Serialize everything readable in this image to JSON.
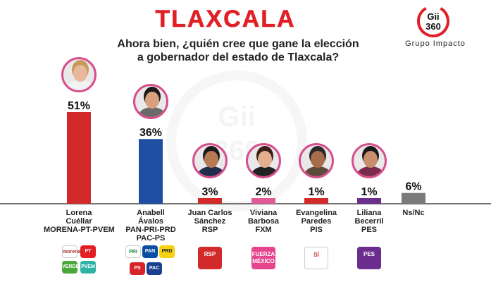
{
  "title": "TLAXCALA",
  "subtitle_line1": "Ahora bien, ¿quién cree que gane la elección",
  "subtitle_line2": "a gobernador del estado de Tlaxcala?",
  "brand": {
    "logo_line1": "Gii",
    "logo_line2": "360",
    "name": "Grupo Impacto"
  },
  "watermark": {
    "line1": "Gii",
    "line2": "360"
  },
  "colors": {
    "title": "#e01f26",
    "red": "#d22a2a",
    "blue": "#1f4fa3",
    "pink": "#e05a98",
    "purple": "#6b2d8e",
    "gray": "#7a7a7a"
  },
  "candidates": [
    {
      "name_lines": [
        "Lorena",
        "Cuéllar",
        "MORENA-PT-PVEM"
      ],
      "value": 51,
      "label": "51%",
      "color": "#d22a2a",
      "parties": [
        {
          "text": "morena",
          "color": "#ffffff",
          "fg": "#a52a2a"
        },
        {
          "text": "PT",
          "color": "#e31e24",
          "fg": "#ffffff"
        },
        {
          "text": "VERDE",
          "color": "#4aa83a",
          "fg": "#ffffff"
        },
        {
          "text": "PVEM",
          "color": "#2eb3a6",
          "fg": "#ffffff"
        }
      ]
    },
    {
      "name_lines": [
        "Anabell",
        "Ávalos",
        "PAN-PRI-PRD",
        "PAC-PS"
      ],
      "value": 36,
      "label": "36%",
      "color": "#1f4fa3",
      "parties": [
        {
          "text": "PRI",
          "color": "#ffffff",
          "fg": "#0f8a3e"
        },
        {
          "text": "PAN",
          "color": "#0a4fa3",
          "fg": "#ffffff"
        },
        {
          "text": "PRD",
          "color": "#f7d20f",
          "fg": "#222222"
        },
        {
          "text": "PS",
          "color": "#d8232a",
          "fg": "#ffffff"
        },
        {
          "text": "PAC",
          "color": "#1d3f8f",
          "fg": "#ffffff"
        }
      ]
    },
    {
      "name_lines": [
        "Juan Carlos",
        "Sánchez",
        "RSP"
      ],
      "value": 3,
      "label": "3%",
      "color": "#d22a2a",
      "parties": [
        {
          "text": "RSP",
          "color": "#d22a2a",
          "fg": "#ffffff"
        }
      ]
    },
    {
      "name_lines": [
        "Viviana",
        "Barbosa",
        "FXM"
      ],
      "value": 2,
      "label": "2%",
      "color": "#e05a98",
      "parties": [
        {
          "text": "FUERZA MÉXICO",
          "color": "#e5458d",
          "fg": "#ffffff"
        }
      ]
    },
    {
      "name_lines": [
        "Evangelina",
        "Paredes",
        "PIS"
      ],
      "value": 1,
      "label": "1%",
      "color": "#d22a2a",
      "parties": [
        {
          "text": "SÍ",
          "color": "#ffffff",
          "fg": "#d22a2a"
        }
      ]
    },
    {
      "name_lines": [
        "Liliana",
        "Becerril",
        "PES"
      ],
      "value": 1,
      "label": "1%",
      "color": "#6b2d8e",
      "parties": [
        {
          "text": "PES",
          "color": "#6b2d8e",
          "fg": "#ffffff"
        }
      ]
    },
    {
      "name_lines": [
        "Ns/Nc"
      ],
      "value": 6,
      "label": "6%",
      "color": "#7a7a7a",
      "parties": []
    }
  ],
  "chart_data": {
    "type": "bar",
    "title": "TLAXCALA",
    "subtitle": "Ahora bien, ¿quién cree que gane la elección a gobernador del estado de Tlaxcala?",
    "categories": [
      "Lorena Cuéllar MORENA-PT-PVEM",
      "Anabell Ávalos PAN-PRI-PRD PAC-PS",
      "Juan Carlos Sánchez RSP",
      "Viviana Barbosa FXM",
      "Evangelina Paredes PIS",
      "Liliana Becerril PES",
      "Ns/Nc"
    ],
    "values": [
      51,
      36,
      3,
      2,
      1,
      1,
      6
    ],
    "data_labels": [
      "51%",
      "36%",
      "3%",
      "2%",
      "1%",
      "1%",
      "6%"
    ],
    "unit": "%",
    "ylim": [
      0,
      55
    ],
    "grid": false,
    "legend": "none"
  }
}
